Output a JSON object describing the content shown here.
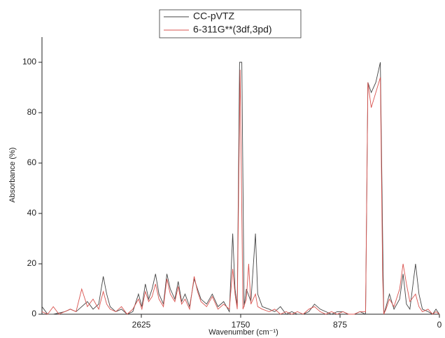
{
  "chart_data": {
    "type": "line",
    "xlabel": "Wavenumber (cm⁻¹)",
    "ylabel": "Absorbance (%)",
    "xlim": [
      3500,
      0
    ],
    "ylim": [
      0,
      110
    ],
    "xticks": [
      2625,
      1750,
      875,
      0
    ],
    "yticks": [
      0,
      20,
      40,
      60,
      80,
      100
    ],
    "legend": "top",
    "series": [
      {
        "name": "CC-pVTZ",
        "color": "#444444",
        "x": [
          3500,
          3450,
          3400,
          3300,
          3250,
          3200,
          3150,
          3100,
          3050,
          3000,
          2960,
          2930,
          2900,
          2850,
          2800,
          2750,
          2700,
          2650,
          2620,
          2590,
          2560,
          2530,
          2500,
          2470,
          2430,
          2400,
          2370,
          2330,
          2300,
          2270,
          2240,
          2200,
          2160,
          2130,
          2100,
          2050,
          2000,
          1950,
          1900,
          1850,
          1820,
          1800,
          1780,
          1760,
          1740,
          1720,
          1700,
          1660,
          1620,
          1600,
          1560,
          1500,
          1450,
          1400,
          1350,
          1300,
          1250,
          1200,
          1150,
          1100,
          1050,
          1000,
          950,
          900,
          850,
          800,
          750,
          700,
          650,
          630,
          600,
          560,
          520,
          500,
          490,
          470,
          440,
          400,
          350,
          320,
          290,
          260,
          210,
          180,
          150,
          100,
          60,
          30,
          0
        ],
        "values": [
          3,
          0,
          0,
          1,
          2,
          1,
          3,
          5,
          2,
          4,
          15,
          8,
          3,
          1,
          2,
          0,
          1,
          8,
          3,
          12,
          6,
          10,
          16,
          8,
          4,
          16,
          10,
          6,
          13,
          5,
          8,
          3,
          14,
          10,
          6,
          4,
          8,
          3,
          5,
          1,
          32,
          10,
          3,
          100,
          100,
          3,
          10,
          5,
          32,
          8,
          3,
          2,
          1,
          3,
          0,
          1,
          0,
          0,
          1,
          4,
          2,
          1,
          0,
          1,
          1,
          0,
          0,
          1,
          0,
          92,
          88,
          92,
          100,
          30,
          0,
          3,
          8,
          2,
          6,
          16,
          4,
          2,
          20,
          8,
          2,
          1,
          0,
          2,
          0
        ]
      },
      {
        "name": "6-311G**(3df,3pd)",
        "color": "#d9534f",
        "x": [
          3500,
          3450,
          3400,
          3350,
          3300,
          3250,
          3200,
          3150,
          3100,
          3050,
          3000,
          2960,
          2930,
          2900,
          2850,
          2800,
          2750,
          2700,
          2650,
          2620,
          2590,
          2560,
          2530,
          2500,
          2470,
          2430,
          2400,
          2370,
          2330,
          2300,
          2270,
          2240,
          2200,
          2160,
          2130,
          2100,
          2050,
          2000,
          1950,
          1900,
          1850,
          1820,
          1800,
          1780,
          1755,
          1730,
          1700,
          1680,
          1660,
          1620,
          1600,
          1560,
          1500,
          1450,
          1400,
          1350,
          1300,
          1250,
          1200,
          1150,
          1100,
          1050,
          1000,
          950,
          900,
          850,
          800,
          750,
          700,
          650,
          630,
          600,
          560,
          520,
          500,
          490,
          470,
          440,
          400,
          350,
          320,
          290,
          260,
          210,
          180,
          150,
          100,
          60,
          30,
          0
        ],
        "values": [
          1,
          0,
          3,
          0,
          1,
          2,
          1,
          10,
          3,
          6,
          2,
          9,
          4,
          2,
          1,
          3,
          0,
          2,
          6,
          2,
          9,
          5,
          7,
          12,
          6,
          3,
          14,
          8,
          5,
          11,
          4,
          6,
          2,
          15,
          9,
          5,
          3,
          7,
          2,
          4,
          2,
          18,
          8,
          2,
          97,
          2,
          6,
          20,
          4,
          8,
          3,
          2,
          1,
          2,
          0,
          1,
          0,
          1,
          0,
          2,
          3,
          1,
          0,
          1,
          0,
          1,
          0,
          0,
          1,
          1,
          92,
          82,
          88,
          94,
          15,
          0,
          2,
          6,
          3,
          10,
          20,
          12,
          5,
          8,
          3,
          1,
          2,
          0,
          1,
          0
        ]
      }
    ]
  }
}
